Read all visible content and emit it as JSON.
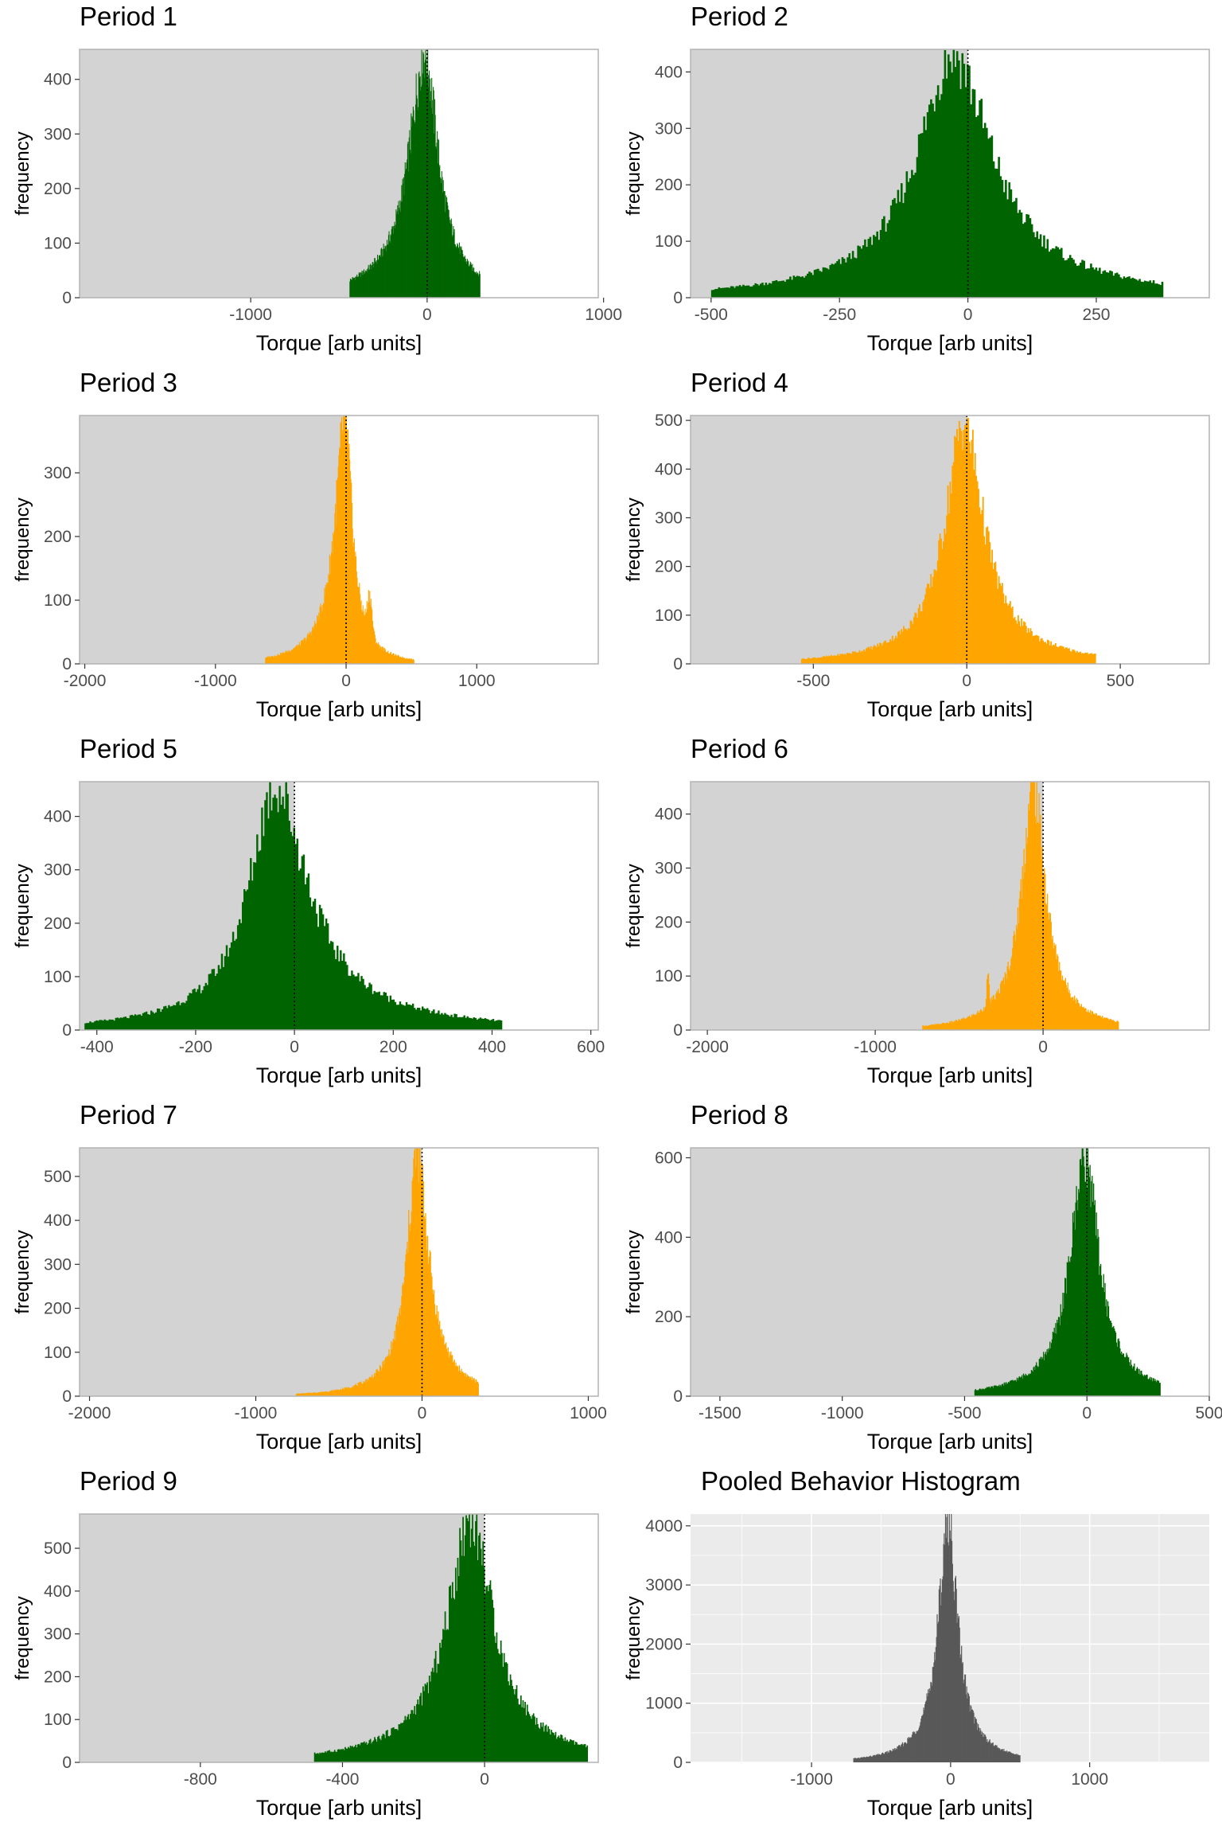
{
  "figure": {
    "colors": {
      "green": "#006400",
      "orange": "#ffa500",
      "shade": "#d3d3d3",
      "pooled_bar": "#595959",
      "pooled_panel": "#ebebeb",
      "frame": "#b3b3b3"
    },
    "panels": [
      {
        "title": "Period 1",
        "xlabel": "Torque [arb units]",
        "ylabel": "frequency",
        "fill": "green"
      },
      {
        "title": "Period 2",
        "xlabel": "Torque [arb units]",
        "ylabel": "frequency",
        "fill": "green"
      },
      {
        "title": "Period 3",
        "xlabel": "Torque [arb units]",
        "ylabel": "frequency",
        "fill": "orange"
      },
      {
        "title": "Period 4",
        "xlabel": "Torque [arb units]",
        "ylabel": "frequency",
        "fill": "orange"
      },
      {
        "title": "Period 5",
        "xlabel": "Torque [arb units]",
        "ylabel": "frequency",
        "fill": "green"
      },
      {
        "title": "Period 6",
        "xlabel": "Torque [arb units]",
        "ylabel": "frequency",
        "fill": "orange"
      },
      {
        "title": "Period 7",
        "xlabel": "Torque [arb units]",
        "ylabel": "frequency",
        "fill": "orange"
      },
      {
        "title": "Period 8",
        "xlabel": "Torque [arb units]",
        "ylabel": "frequency",
        "fill": "green"
      },
      {
        "title": "Period 9",
        "xlabel": "Torque [arb units]",
        "ylabel": "frequency",
        "fill": "green"
      },
      {
        "title": "Pooled Behavior Histogram",
        "xlabel": "Torque [arb units]",
        "ylabel": "frequency",
        "fill": "pooled"
      }
    ]
  },
  "chart_data": [
    {
      "type": "bar",
      "title": "Period 1",
      "xlabel": "Torque [arb units]",
      "ylabel": "frequency",
      "xlim": [
        -1970,
        970
      ],
      "ylim": [
        0,
        455
      ],
      "xticks": [
        -1000,
        0,
        1000
      ],
      "xtick_labels": [
        "-1000",
        "0",
        "1000"
      ],
      "yticks": [
        0,
        100,
        200,
        300,
        400
      ],
      "shaded_region": [
        -1970,
        0
      ],
      "threshold": 0,
      "peak_x": -15,
      "peak_freq": 455,
      "spread": [
        110,
        95
      ],
      "x_range": [
        -440,
        300
      ],
      "bumps": [
        {
          "x": 415,
          "freq": 18,
          "width": 10
        }
      ]
    },
    {
      "type": "bar",
      "title": "Period 2",
      "xlabel": "Torque [arb units]",
      "ylabel": "frequency",
      "xlim": [
        -540,
        470
      ],
      "ylim": [
        0,
        440
      ],
      "xticks": [
        -500,
        -250,
        0,
        250
      ],
      "yticks": [
        0,
        100,
        200,
        300,
        400
      ],
      "shaded_region": [
        -540,
        0
      ],
      "threshold": 0,
      "peak_x": -30,
      "peak_freq": 440,
      "spread": [
        85,
        95
      ],
      "x_range": [
        -500,
        380
      ]
    },
    {
      "type": "bar",
      "title": "Period 3",
      "xlabel": "Torque [arb units]",
      "ylabel": "frequency",
      "xlim": [
        -2040,
        1930
      ],
      "ylim": [
        0,
        390
      ],
      "xticks": [
        -2000,
        -1000,
        0,
        1000
      ],
      "yticks": [
        0,
        100,
        200,
        300
      ],
      "shaded_region": [
        -2040,
        0
      ],
      "threshold": 0,
      "peak_x": -10,
      "peak_freq": 390,
      "spread": [
        95,
        70
      ],
      "x_range": [
        -620,
        520
      ],
      "bumps": [
        {
          "x": 180,
          "freq": 60,
          "width": 25
        }
      ]
    },
    {
      "type": "bar",
      "title": "Period 4",
      "xlabel": "Torque [arb units]",
      "ylabel": "frequency",
      "xlim": [
        -900,
        790
      ],
      "ylim": [
        0,
        510
      ],
      "xticks": [
        -500,
        0,
        500
      ],
      "yticks": [
        0,
        100,
        200,
        300,
        400,
        500
      ],
      "shaded_region": [
        -900,
        0
      ],
      "threshold": 0,
      "peak_x": -10,
      "peak_freq": 505,
      "spread": [
        75,
        80
      ],
      "x_range": [
        -540,
        420
      ]
    },
    {
      "type": "bar",
      "title": "Period 5",
      "xlabel": "Torque [arb units]",
      "ylabel": "frequency",
      "xlim": [
        -435,
        615
      ],
      "ylim": [
        0,
        465
      ],
      "xticks": [
        -400,
        -200,
        0,
        200,
        400,
        600
      ],
      "yticks": [
        0,
        100,
        200,
        300,
        400
      ],
      "shaded_region": [
        -435,
        0
      ],
      "threshold": 0,
      "peak_x": -40,
      "peak_freq": 465,
      "spread": [
        65,
        85
      ],
      "x_range": [
        -425,
        420
      ]
    },
    {
      "type": "bar",
      "title": "Period 6",
      "xlabel": "Torque [arb units]",
      "ylabel": "frequency",
      "xlim": [
        -2100,
        990
      ],
      "ylim": [
        0,
        460
      ],
      "xticks": [
        -2000,
        -1000,
        0
      ],
      "yticks": [
        0,
        100,
        200,
        300,
        400
      ],
      "shaded_region": [
        -2100,
        0
      ],
      "threshold": 0,
      "peak_x": -60,
      "peak_freq": 460,
      "spread": [
        85,
        90
      ],
      "x_range": [
        -720,
        450
      ],
      "bumps": [
        {
          "x": -330,
          "freq": 55,
          "width": 10
        }
      ]
    },
    {
      "type": "bar",
      "title": "Period 7",
      "xlabel": "Torque [arb units]",
      "ylabel": "frequency",
      "xlim": [
        -2060,
        1060
      ],
      "ylim": [
        0,
        565
      ],
      "xticks": [
        -2000,
        -1000,
        0,
        1000
      ],
      "yticks": [
        0,
        100,
        200,
        300,
        400,
        500
      ],
      "shaded_region": [
        -2060,
        0
      ],
      "threshold": 0,
      "peak_x": -30,
      "peak_freq": 565,
      "spread": [
        75,
        85
      ],
      "x_range": [
        -760,
        340
      ]
    },
    {
      "type": "bar",
      "title": "Period 8",
      "xlabel": "Torque [arb units]",
      "ylabel": "frequency",
      "xlim": [
        -1620,
        500
      ],
      "ylim": [
        0,
        625
      ],
      "xticks": [
        -1500,
        -1000,
        -500,
        0,
        500
      ],
      "yticks": [
        0,
        200,
        400,
        600
      ],
      "shaded_region": [
        -1620,
        0
      ],
      "threshold": 0,
      "peak_x": -10,
      "peak_freq": 625,
      "spread": [
        70,
        70
      ],
      "x_range": [
        -460,
        300
      ]
    },
    {
      "type": "bar",
      "title": "Period 9",
      "xlabel": "Torque [arb units]",
      "ylabel": "frequency",
      "xlim": [
        -1140,
        320
      ],
      "ylim": [
        0,
        580
      ],
      "xticks": [
        -800,
        -400,
        0
      ],
      "yticks": [
        0,
        100,
        200,
        300,
        400,
        500
      ],
      "shaded_region": [
        -1140,
        0
      ],
      "threshold": 0,
      "peak_x": -40,
      "peak_freq": 580,
      "spread": [
        80,
        80
      ],
      "x_range": [
        -480,
        290
      ]
    },
    {
      "type": "bar",
      "title": "Pooled Behavior Histogram",
      "xlabel": "Torque [arb units]",
      "ylabel": "frequency",
      "xlim": [
        -1870,
        1860
      ],
      "ylim": [
        0,
        4200
      ],
      "xticks": [
        -1000,
        0,
        1000
      ],
      "yticks": [
        0,
        1000,
        2000,
        3000,
        4000
      ],
      "grid": true,
      "peak_x": -20,
      "peak_freq": 4200,
      "spread": [
        85,
        85
      ],
      "x_range": [
        -700,
        500
      ]
    }
  ]
}
